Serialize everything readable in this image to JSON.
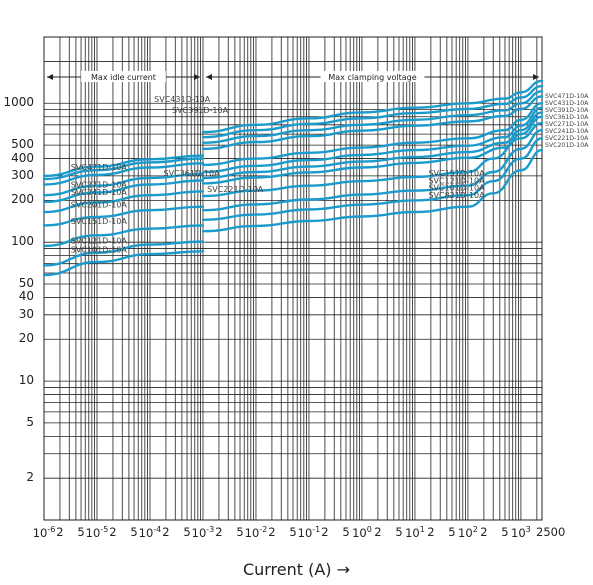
{
  "chart_data": {
    "type": "line",
    "xlabel": "Current (A)",
    "xlabel_arrow": "→",
    "x_scale": "log",
    "y_scale": "log",
    "xlim": [
      1e-06,
      2500
    ],
    "ylim": [
      1,
      3000
    ],
    "grid": true,
    "y_tick_labels": [
      {
        "label": "1000",
        "value": 1000
      },
      {
        "label": "500",
        "value": 500
      },
      {
        "label": "400",
        "value": 400
      },
      {
        "label": "300",
        "value": 300
      },
      {
        "label": "200",
        "value": 200
      },
      {
        "label": "100",
        "value": 100
      },
      {
        "label": "50",
        "value": 50
      },
      {
        "label": "40",
        "value": 40
      },
      {
        "label": "30",
        "value": 30
      },
      {
        "label": "20",
        "value": 20
      },
      {
        "label": "10",
        "value": 10
      },
      {
        "label": "5",
        "value": 5
      },
      {
        "label": "2",
        "value": 2
      }
    ],
    "x_tick_labels": [
      {
        "label": "10-6",
        "value": 1e-06
      },
      {
        "label": "2",
        "value": 2e-06
      },
      {
        "label": "5",
        "value": 5e-06
      },
      {
        "label": "10-5",
        "value": 1e-05
      },
      {
        "label": "2",
        "value": 2e-05
      },
      {
        "label": "5",
        "value": 5e-05
      },
      {
        "label": "10-4",
        "value": 0.0001
      },
      {
        "label": "2",
        "value": 0.0002
      },
      {
        "label": "5",
        "value": 0.0005
      },
      {
        "label": "10-3",
        "value": 0.001
      },
      {
        "label": "2",
        "value": 0.002
      },
      {
        "label": "5",
        "value": 0.005
      },
      {
        "label": "10-2",
        "value": 0.01
      },
      {
        "label": "2",
        "value": 0.02
      },
      {
        "label": "5",
        "value": 0.05
      },
      {
        "label": "10-1",
        "value": 0.1
      },
      {
        "label": "2",
        "value": 0.2
      },
      {
        "label": "5",
        "value": 0.5
      },
      {
        "label": "100",
        "value": 1
      },
      {
        "label": "2",
        "value": 2
      },
      {
        "label": "5",
        "value": 5
      },
      {
        "label": "101",
        "value": 10
      },
      {
        "label": "2",
        "value": 20
      },
      {
        "label": "5",
        "value": 50
      },
      {
        "label": "102",
        "value": 100
      },
      {
        "label": "2",
        "value": 200
      },
      {
        "label": "5",
        "value": 500
      },
      {
        "label": "103",
        "value": 1000
      },
      {
        "label": "2500",
        "value": 2500
      }
    ],
    "region_labels": [
      {
        "text": "Max idle current",
        "x_from": 1e-06,
        "x_to": 0.001
      },
      {
        "text": "Max clamping voltage",
        "x_from": 0.001,
        "x_to": 2500
      }
    ],
    "series_names_right": [
      "SVC471D-10A",
      "SVC431D-10A",
      "SVC391D-10A",
      "SVC361D-10A",
      "SVC271D-10A",
      "SVC241D-10A",
      "SVC221D-10A",
      "SVC201D-10A"
    ],
    "inline_labels": [
      {
        "text": "SVC431D-10A",
        "x": 0.00012,
        "y": 1020
      },
      {
        "text": "SVC391D-10A",
        "x": 0.00026,
        "y": 850
      },
      {
        "text": "SVC471D-10A",
        "x": 3.2e-06,
        "y": 330
      },
      {
        "text": "SVC361D-10A",
        "x": 0.00018,
        "y": 300
      },
      {
        "text": "SVC271D-10A",
        "x": 3.2e-06,
        "y": 248
      },
      {
        "text": "SVC241D-10A",
        "x": 3.2e-06,
        "y": 218
      },
      {
        "text": "SVC221D-10A",
        "x": 0.0012,
        "y": 230
      },
      {
        "text": "SVC201D-10A",
        "x": 3.2e-06,
        "y": 178
      },
      {
        "text": "SVC151D-10A",
        "x": 3.2e-06,
        "y": 135
      },
      {
        "text": "SVC121D-10A",
        "x": 3.2e-06,
        "y": 98
      },
      {
        "text": "SVC101D-10A",
        "x": 3.2e-06,
        "y": 84
      },
      {
        "text": "SVC151D-10A",
        "x": 18,
        "y": 300
      },
      {
        "text": "SVC121D-10A",
        "x": 18,
        "y": 265
      },
      {
        "text": "SVC101D-10A",
        "x": 18,
        "y": 235
      },
      {
        "text": "SVC821D-10A",
        "x": 18,
        "y": 208
      }
    ],
    "series": [
      {
        "name": "SVC471D-10A",
        "segment": "right",
        "points": [
          [
            0.001,
            620
          ],
          [
            0.01,
            700
          ],
          [
            0.1,
            780
          ],
          [
            1,
            860
          ],
          [
            10,
            930
          ],
          [
            100,
            1000
          ],
          [
            500,
            1080
          ],
          [
            1000,
            1200
          ],
          [
            2500,
            1450
          ]
        ]
      },
      {
        "name": "SVC431D-10A",
        "segment": "right",
        "points": [
          [
            0.001,
            570
          ],
          [
            0.01,
            640
          ],
          [
            0.1,
            710
          ],
          [
            1,
            780
          ],
          [
            10,
            850
          ],
          [
            100,
            910
          ],
          [
            500,
            990
          ],
          [
            1000,
            1100
          ],
          [
            2500,
            1330
          ]
        ]
      },
      {
        "name": "SVC391D-10A",
        "segment": "right",
        "points": [
          [
            0.001,
            520
          ],
          [
            0.01,
            580
          ],
          [
            0.1,
            640
          ],
          [
            1,
            700
          ],
          [
            10,
            760
          ],
          [
            100,
            820
          ],
          [
            500,
            890
          ],
          [
            1000,
            1000
          ],
          [
            2500,
            1220
          ]
        ]
      },
      {
        "name": "SVC361D-10A",
        "segment": "right",
        "points": [
          [
            0.001,
            470
          ],
          [
            0.01,
            525
          ],
          [
            0.1,
            580
          ],
          [
            1,
            635
          ],
          [
            10,
            690
          ],
          [
            100,
            740
          ],
          [
            500,
            810
          ],
          [
            1000,
            910
          ],
          [
            2500,
            1120
          ]
        ]
      },
      {
        "name": "SVC271D-10A",
        "segment": "right",
        "points": [
          [
            0.001,
            360
          ],
          [
            0.01,
            400
          ],
          [
            0.1,
            440
          ],
          [
            1,
            480
          ],
          [
            10,
            520
          ],
          [
            100,
            560
          ],
          [
            500,
            640
          ],
          [
            1000,
            760
          ],
          [
            2500,
            1000
          ]
        ]
      },
      {
        "name": "SVC241D-10A",
        "segment": "right",
        "points": [
          [
            0.001,
            320
          ],
          [
            0.01,
            355
          ],
          [
            0.1,
            390
          ],
          [
            1,
            425
          ],
          [
            10,
            460
          ],
          [
            100,
            495
          ],
          [
            500,
            570
          ],
          [
            1000,
            690
          ],
          [
            2500,
            930
          ]
        ]
      },
      {
        "name": "SVC221D-10A",
        "segment": "right",
        "points": [
          [
            0.001,
            290
          ],
          [
            0.01,
            320
          ],
          [
            0.1,
            350
          ],
          [
            1,
            380
          ],
          [
            10,
            410
          ],
          [
            100,
            445
          ],
          [
            500,
            520
          ],
          [
            1000,
            640
          ],
          [
            2500,
            860
          ]
        ]
      },
      {
        "name": "SVC201D-10A",
        "segment": "right",
        "points": [
          [
            0.001,
            265
          ],
          [
            0.01,
            292
          ],
          [
            0.1,
            318
          ],
          [
            1,
            345
          ],
          [
            10,
            372
          ],
          [
            100,
            405
          ],
          [
            500,
            480
          ],
          [
            1000,
            600
          ],
          [
            2500,
            800
          ]
        ]
      },
      {
        "name": "SVC151D-10A",
        "segment": "right",
        "points": [
          [
            0.001,
            215
          ],
          [
            0.01,
            235
          ],
          [
            0.1,
            255
          ],
          [
            1,
            275
          ],
          [
            10,
            295
          ],
          [
            100,
            320
          ],
          [
            300,
            400
          ],
          [
            1000,
            560
          ],
          [
            2500,
            720
          ]
        ]
      },
      {
        "name": "SVC121D-10A",
        "segment": "right",
        "points": [
          [
            0.001,
            170
          ],
          [
            0.01,
            187
          ],
          [
            0.1,
            203
          ],
          [
            1,
            220
          ],
          [
            10,
            235
          ],
          [
            100,
            255
          ],
          [
            300,
            320
          ],
          [
            1000,
            470
          ],
          [
            2500,
            640
          ]
        ]
      },
      {
        "name": "SVC101D-10A",
        "segment": "right",
        "points": [
          [
            0.001,
            145
          ],
          [
            0.01,
            158
          ],
          [
            0.1,
            172
          ],
          [
            1,
            186
          ],
          [
            10,
            200
          ],
          [
            100,
            218
          ],
          [
            300,
            275
          ],
          [
            1000,
            400
          ],
          [
            2500,
            560
          ]
        ]
      },
      {
        "name": "SVC821D-10A",
        "segment": "right",
        "points": [
          [
            0.001,
            120
          ],
          [
            0.01,
            131
          ],
          [
            0.1,
            142
          ],
          [
            1,
            153
          ],
          [
            10,
            165
          ],
          [
            100,
            180
          ],
          [
            300,
            225
          ],
          [
            1000,
            330
          ],
          [
            2500,
            460
          ]
        ]
      },
      {
        "name": "SVC471D-10A",
        "segment": "left",
        "points": [
          [
            1e-06,
            300
          ],
          [
            1e-05,
            350
          ],
          [
            0.0001,
            395
          ],
          [
            0.001,
            420
          ]
        ]
      },
      {
        "name": "SVC431D-10A",
        "segment": "left",
        "points": [
          [
            1e-06,
            285
          ],
          [
            1e-05,
            330
          ],
          [
            0.0001,
            375
          ],
          [
            0.001,
            400
          ]
        ]
      },
      {
        "name": "SVC361D-10A",
        "segment": "left",
        "points": [
          [
            1e-06,
            260
          ],
          [
            1e-05,
            305
          ],
          [
            0.0001,
            345
          ],
          [
            0.001,
            370
          ]
        ]
      },
      {
        "name": "SVC271D-10A",
        "segment": "left",
        "points": [
          [
            1e-06,
            218
          ],
          [
            1e-05,
            255
          ],
          [
            0.0001,
            290
          ],
          [
            0.001,
            310
          ]
        ]
      },
      {
        "name": "SVC241D-10A",
        "segment": "left",
        "points": [
          [
            1e-06,
            195
          ],
          [
            1e-05,
            228
          ],
          [
            0.0001,
            260
          ],
          [
            0.001,
            278
          ]
        ]
      },
      {
        "name": "SVC201D-10A",
        "segment": "left",
        "points": [
          [
            1e-06,
            165
          ],
          [
            1e-05,
            193
          ],
          [
            0.0001,
            218
          ],
          [
            0.001,
            232
          ]
        ]
      },
      {
        "name": "SVC151D-10A",
        "segment": "left",
        "points": [
          [
            1e-06,
            132
          ],
          [
            1e-05,
            152
          ],
          [
            0.0001,
            170
          ],
          [
            0.001,
            180
          ]
        ]
      },
      {
        "name": "SVC121D-10A",
        "segment": "left",
        "points": [
          [
            1e-06,
            94
          ],
          [
            1e-05,
            112
          ],
          [
            0.0001,
            125
          ],
          [
            0.001,
            132
          ]
        ]
      },
      {
        "name": "SVC101D-10A",
        "segment": "left",
        "points": [
          [
            1e-06,
            68
          ],
          [
            1e-05,
            84
          ],
          [
            0.0001,
            96
          ],
          [
            0.001,
            101
          ]
        ]
      },
      {
        "name": "SVC821D-10A",
        "segment": "left",
        "points": [
          [
            1e-06,
            58
          ],
          [
            1e-05,
            72
          ],
          [
            0.0001,
            82
          ],
          [
            0.001,
            86
          ]
        ]
      }
    ]
  },
  "colors": {
    "curve": "#1a9bcc",
    "grid": "#222222",
    "text": "#222222",
    "label_text": "#444444"
  }
}
